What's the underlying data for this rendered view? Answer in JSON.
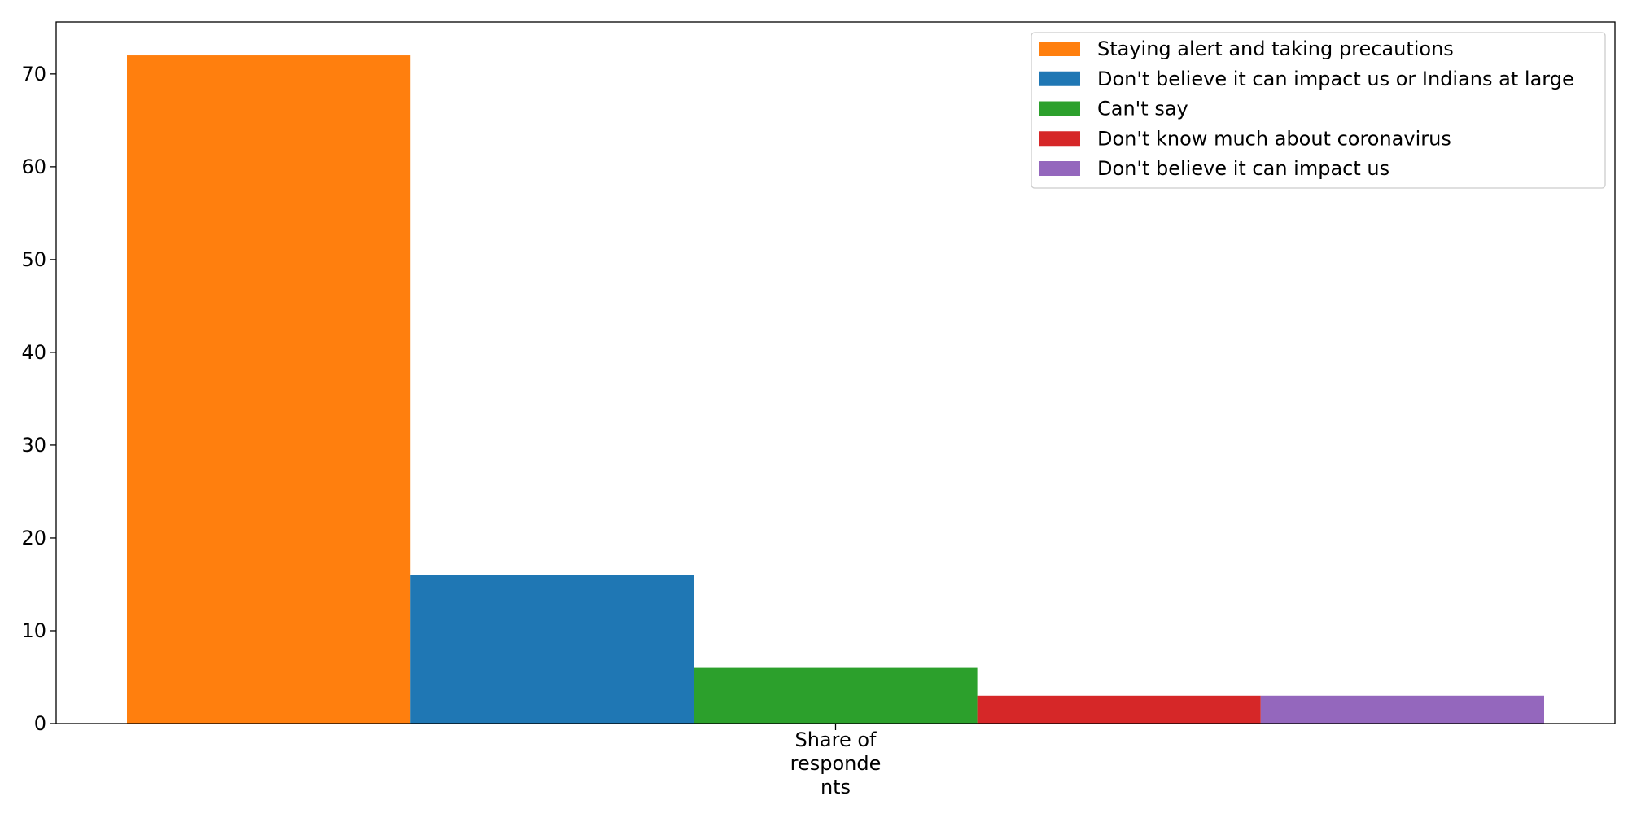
{
  "chart_data": {
    "type": "bar",
    "categories": [
      "Share of respondents"
    ],
    "category_label_lines": [
      "Share of",
      "responde",
      "nts"
    ],
    "series": [
      {
        "name": "Staying alert and taking precautions",
        "values": [
          72
        ],
        "color": "#ff7f0e"
      },
      {
        "name": "Don't believe it can impact us or Indians at large",
        "values": [
          16
        ],
        "color": "#1f77b4"
      },
      {
        "name": "Can't say",
        "values": [
          6
        ],
        "color": "#2ca02c"
      },
      {
        "name": "Don't know much about coronavirus",
        "values": [
          3
        ],
        "color": "#d62728"
      },
      {
        "name": "Don't believe it can impact us",
        "values": [
          3
        ],
        "color": "#9467bd"
      }
    ],
    "ylim": [
      0,
      75.6
    ],
    "yticks": [
      0,
      10,
      20,
      30,
      40,
      50,
      60,
      70
    ],
    "grid": false,
    "legend_position": "top-right"
  }
}
